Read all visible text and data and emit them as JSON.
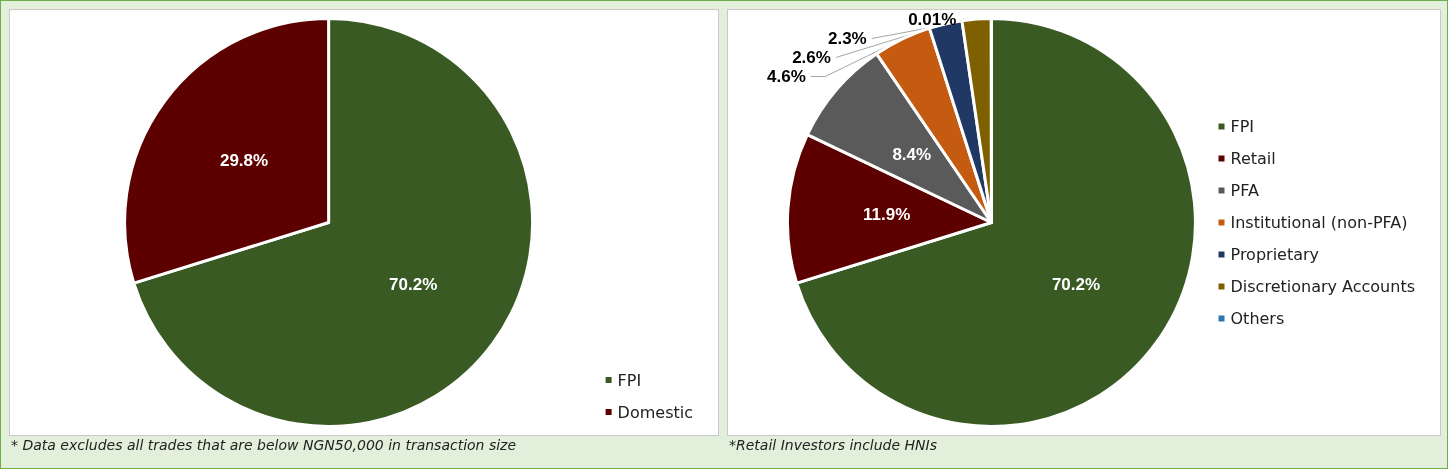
{
  "chart_data": [
    {
      "type": "pie",
      "categories": [
        "FPI",
        "Domestic"
      ],
      "values": [
        70.2,
        29.8
      ],
      "colors": [
        "#3a5a24",
        "#5c0000"
      ],
      "value_labels": [
        "70.2%",
        "29.8%"
      ],
      "legend": "bottom right",
      "annotations": [
        "* Data excludes all trades that are below NGN50,000 in transaction size"
      ]
    },
    {
      "type": "pie",
      "categories": [
        "FPI",
        "Retail",
        "PFA",
        "Institutional (non-PFA)",
        "Proprietary",
        "Discretionary Accounts",
        "Others"
      ],
      "values": [
        70.2,
        11.9,
        8.4,
        4.6,
        2.6,
        2.3,
        0.01
      ],
      "colors": [
        "#3a5a24",
        "#5c0000",
        "#5a5a5a",
        "#c55a11",
        "#1f3864",
        "#7f6000",
        "#2e75b6"
      ],
      "value_labels": [
        "70.2%",
        "11.9%",
        "8.4%",
        "4.6%",
        "2.6%",
        "2.3%",
        "0.01%"
      ],
      "legend": "right",
      "annotations": [
        "*Retail Investors include HNIs"
      ]
    }
  ]
}
